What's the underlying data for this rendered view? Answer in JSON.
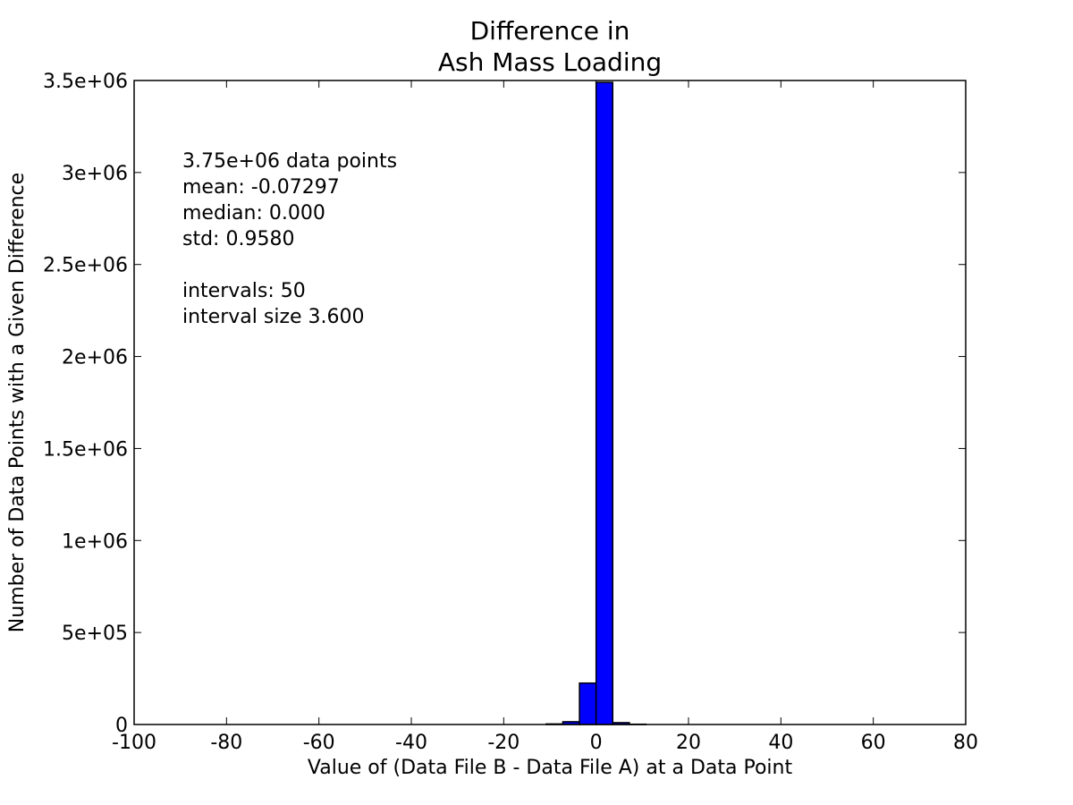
{
  "chart_data": {
    "type": "bar",
    "title_lines": [
      "Difference in",
      "Ash Mass Loading"
    ],
    "xlabel": "Value of (Data File B - Data File A) at a Data Point",
    "ylabel": "Number of Data Points with a Given Difference",
    "xlim": [
      -100,
      80
    ],
    "ylim": [
      0,
      3500000
    ],
    "x_ticks": [
      "-100",
      "-80",
      "-60",
      "-40",
      "-20",
      "0",
      "20",
      "40",
      "60",
      "80"
    ],
    "y_ticks": [
      "0",
      "5e+05",
      "1e+06",
      "1.5e+06",
      "2e+06",
      "2.5e+06",
      "3e+06",
      "3.5e+06"
    ],
    "grid": false,
    "bar_color": "#0000ff",
    "bin_width": 3.6,
    "bins": [
      {
        "x0": -10.8,
        "value": 3000
      },
      {
        "x0": -7.2,
        "value": 15000
      },
      {
        "x0": -3.6,
        "value": 225000
      },
      {
        "x0": 0.0,
        "value": 3490000
      },
      {
        "x0": 3.6,
        "value": 10000
      },
      {
        "x0": 7.2,
        "value": 1500
      }
    ],
    "annotation_lines": [
      "3.75e+06 data points",
      "mean: -0.07297",
      "median: 0.000",
      "std: 0.9580",
      "",
      "intervals: 50",
      "interval size 3.600"
    ]
  }
}
